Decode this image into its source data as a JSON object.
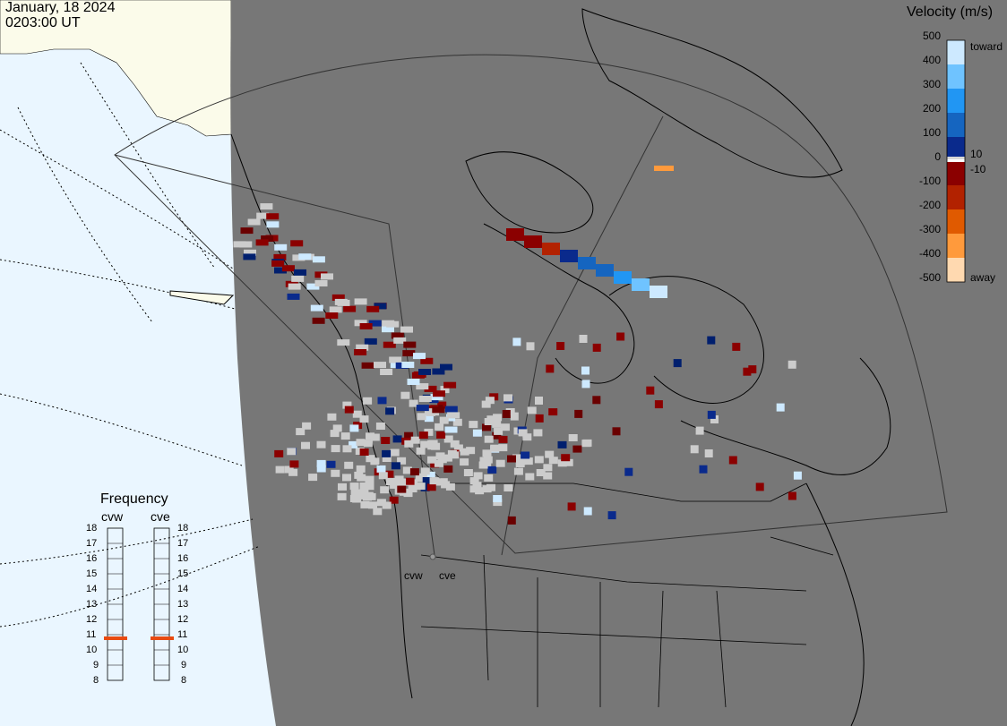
{
  "header": {
    "date": "January, 18 2024",
    "time": "0203:00 UT"
  },
  "velocity_scale": {
    "title": "Velocity (m/s)",
    "ticks": [
      "500",
      "400",
      "300",
      "200",
      "100",
      "0",
      "-100",
      "-200",
      "-300",
      "-400",
      "-500"
    ],
    "inner_labels": [
      "10",
      "-10"
    ],
    "toward_label": "toward",
    "away_label": "away",
    "colors": {
      "toward_500": "#cde9ff",
      "toward_400": "#6fc3ff",
      "toward_300": "#2196f3",
      "toward_200": "#1565c0",
      "toward_100": "#0a2a8c",
      "toward_10": "#001f6e",
      "away_10": "#6a0000",
      "away_100": "#8b0000",
      "away_200": "#b22200",
      "away_300": "#e05a00",
      "away_400": "#ff9a3c",
      "away_500": "#ffd9b0"
    }
  },
  "frequency": {
    "title": "Frequency",
    "radars": [
      {
        "name": "cvw",
        "frequency_mhz": 11
      },
      {
        "name": "cve",
        "frequency_mhz": 11
      }
    ],
    "ticks": [
      "18",
      "17",
      "16",
      "15",
      "14",
      "13",
      "12",
      "11",
      "10",
      "9",
      "8"
    ],
    "marker_color": "#e84a10"
  },
  "map": {
    "background_color": "#777777",
    "daylight_color": "#eaf6ff",
    "land_day_color": "#fbfbea",
    "ground_scatter_color": "#cccccc",
    "radar_labels": [
      "cvw",
      "cve"
    ]
  }
}
